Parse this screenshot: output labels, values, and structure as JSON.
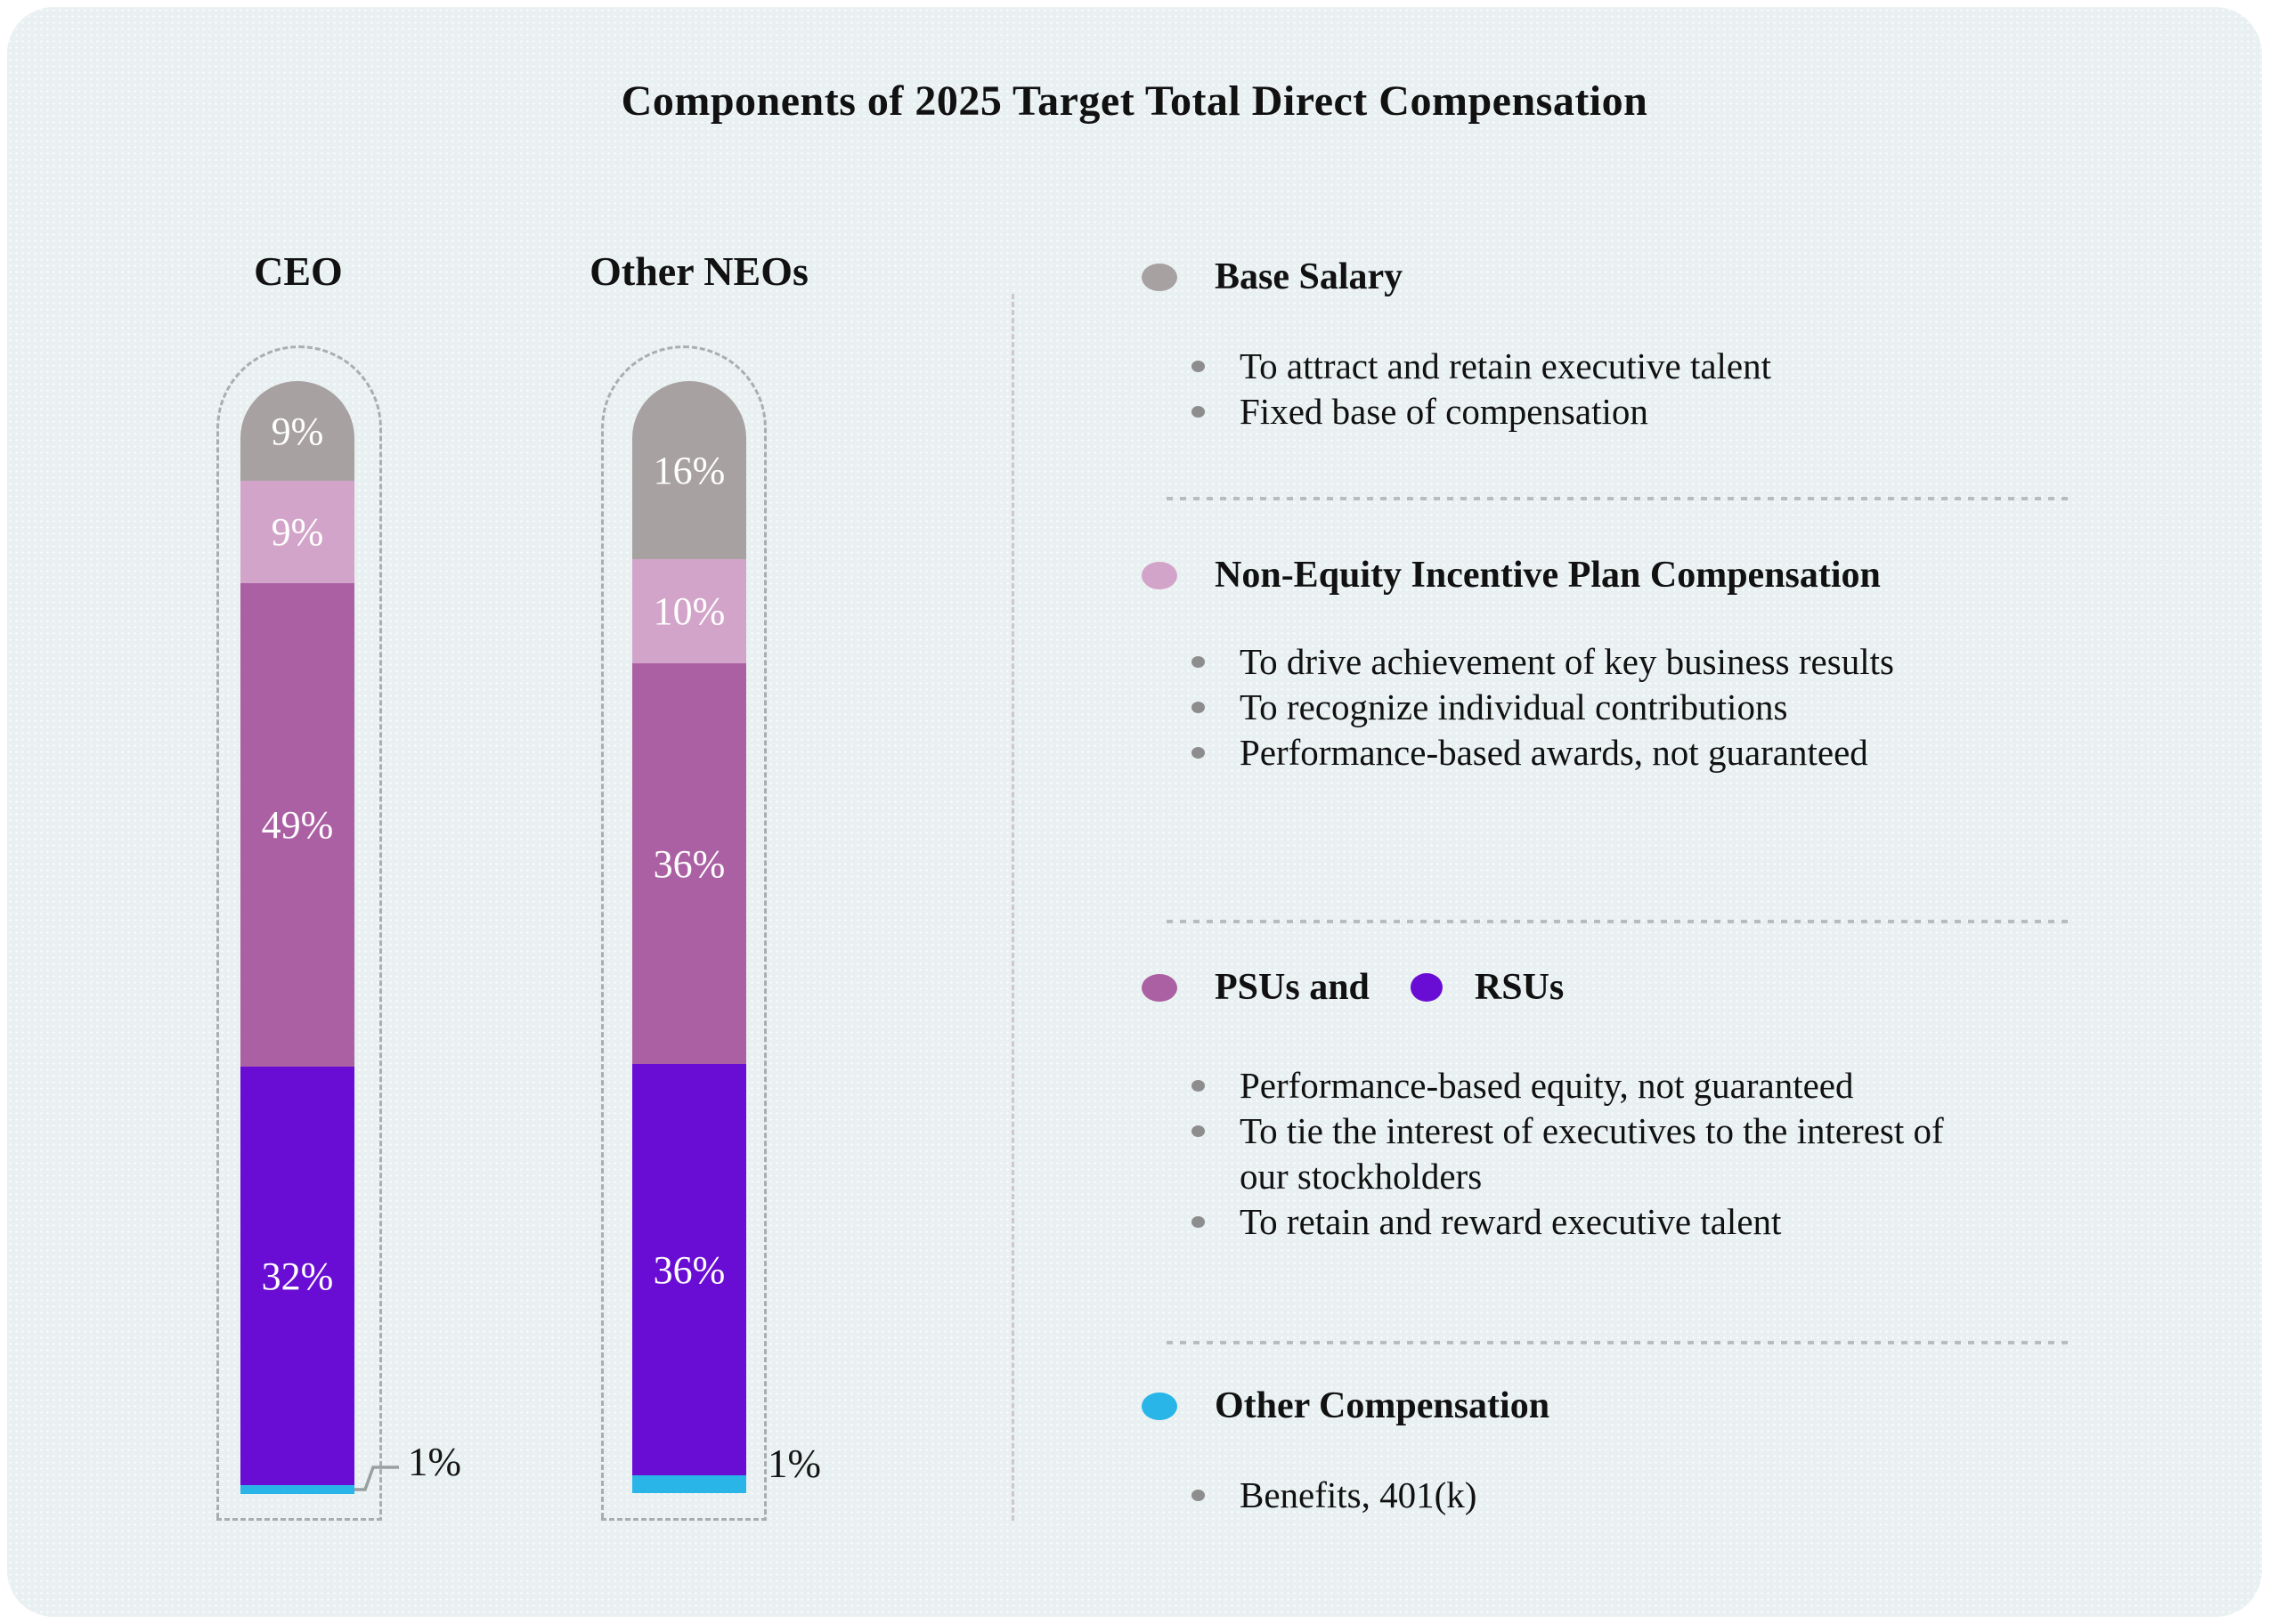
{
  "title": "Components of 2025 Target Total Direct Compensation",
  "colors": {
    "background": "#e9f0f1",
    "gray": "#a7a1a1",
    "pink": "#d3a4c9",
    "orchid": "#ab60a4",
    "violet": "#6a0dd4",
    "cyan": "#2ab5e9",
    "leader_line": "#9aa0a0",
    "divider": "#b7bdbd",
    "capsule_dash": "#a9aeae",
    "segment_label_text": "#ffffff"
  },
  "chart_data": {
    "type": "bar",
    "stacked": true,
    "unit": "%",
    "title": "Components of 2025 Target Total Direct Compensation",
    "categories": [
      "CEO",
      "Other NEOs"
    ],
    "series": [
      {
        "name": "Base Salary",
        "values": [
          9,
          16
        ]
      },
      {
        "name": "Non-Equity Incentive Plan Compensation",
        "values": [
          9,
          10
        ]
      },
      {
        "name": "PSUs",
        "values": [
          49,
          36
        ]
      },
      {
        "name": "RSUs",
        "values": [
          32,
          36
        ]
      },
      {
        "name": "Other Compensation",
        "values": [
          1,
          1
        ]
      }
    ],
    "legend_position": "right",
    "bars": [
      {
        "category": "CEO",
        "outside_label": "1%",
        "segments": [
          {
            "label": "9%",
            "color": "gray",
            "px": 112,
            "show_label": true
          },
          {
            "label": "9%",
            "color": "pink",
            "px": 115,
            "show_label": true
          },
          {
            "label": "49%",
            "color": "orchid",
            "px": 543,
            "show_label": true
          },
          {
            "label": "32%",
            "color": "violet",
            "px": 470,
            "show_label": true
          },
          {
            "label": "1%",
            "color": "cyan",
            "px": 10,
            "show_label": false
          }
        ]
      },
      {
        "category": "Other NEOs",
        "outside_label": "1%",
        "segments": [
          {
            "label": "16%",
            "color": "gray",
            "px": 200,
            "show_label": true
          },
          {
            "label": "10%",
            "color": "pink",
            "px": 117,
            "show_label": true
          },
          {
            "label": "36%",
            "color": "orchid",
            "px": 450,
            "show_label": true
          },
          {
            "label": "36%",
            "color": "violet",
            "px": 462,
            "show_label": true
          },
          {
            "label": "1%",
            "color": "cyan",
            "px": 20,
            "show_label": false
          }
        ]
      }
    ]
  },
  "legend": {
    "sections": [
      {
        "title": "Base Salary",
        "bullet_color": "gray",
        "items": [
          "To attract and retain executive talent",
          "Fixed base of compensation"
        ]
      },
      {
        "title": "Non-Equity Incentive Plan Compensation",
        "bullet_color": "pink",
        "items": [
          "To drive achievement of key business results",
          "To recognize individual contributions",
          "Performance-based awards, not guaranteed"
        ]
      },
      {
        "title": "PSUs and",
        "title2": "RSUs",
        "bullet_color": "orchid",
        "bullet2_color": "violet",
        "items": [
          "Performance-based equity, not guaranteed",
          "To tie the interest of executives to the interest of our stockholders",
          "To retain and reward executive talent"
        ]
      },
      {
        "title": "Other Compensation",
        "bullet_color": "cyan",
        "items": [
          "Benefits, 401(k)"
        ]
      }
    ]
  }
}
